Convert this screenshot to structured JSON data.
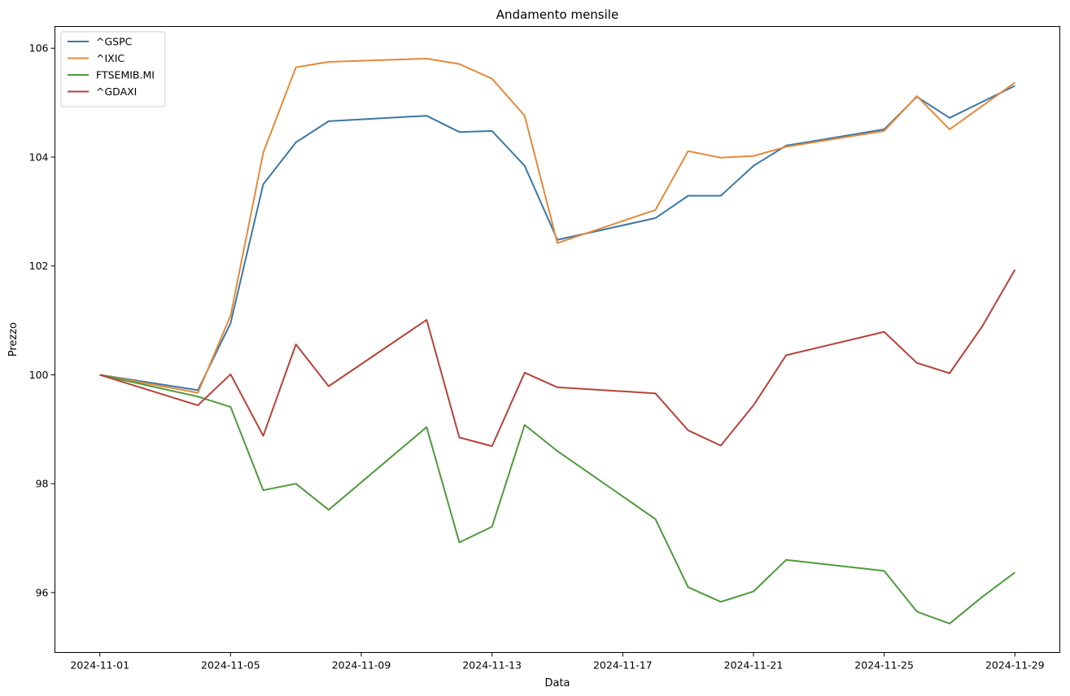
{
  "chart_data": {
    "type": "line",
    "title": "Andamento mensile",
    "xlabel": "Data",
    "ylabel": "Prezzo",
    "x": [
      "2024-11-01",
      "2024-11-04",
      "2024-11-05",
      "2024-11-06",
      "2024-11-07",
      "2024-11-08",
      "2024-11-11",
      "2024-11-12",
      "2024-11-13",
      "2024-11-14",
      "2024-11-15",
      "2024-11-18",
      "2024-11-19",
      "2024-11-20",
      "2024-11-21",
      "2024-11-22",
      "2024-11-25",
      "2024-11-26",
      "2024-11-27",
      "2024-11-28",
      "2024-11-29"
    ],
    "xticks": [
      "2024-11-01",
      "2024-11-05",
      "2024-11-09",
      "2024-11-13",
      "2024-11-17",
      "2024-11-21",
      "2024-11-25",
      "2024-11-29"
    ],
    "yticks": [
      96,
      98,
      100,
      102,
      104,
      106
    ],
    "xlim": [
      "2024-10-30T15:00",
      "2024-11-30T09:00"
    ],
    "ylim": [
      94.9,
      106.4
    ],
    "grid": false,
    "legend_position": "top-left",
    "series": [
      {
        "name": "^GSPC",
        "color": "#3c78a6",
        "values": [
          100.0,
          99.72,
          100.95,
          103.5,
          104.27,
          104.66,
          104.76,
          104.46,
          104.48,
          103.84,
          102.48,
          102.88,
          103.29,
          103.29,
          103.84,
          104.21,
          104.51,
          105.11,
          104.72,
          null,
          105.31
        ]
      },
      {
        "name": "^IXIC",
        "color": "#e5893a",
        "values": [
          100.0,
          99.67,
          101.09,
          104.08,
          105.65,
          105.75,
          105.81,
          105.71,
          105.44,
          104.76,
          102.42,
          103.03,
          104.11,
          103.99,
          104.02,
          104.19,
          104.48,
          105.12,
          104.51,
          null,
          105.37
        ]
      },
      {
        "name": "FTSEMIB.MI",
        "color": "#4e9a3d",
        "values": [
          100.0,
          99.6,
          99.41,
          97.88,
          98.0,
          97.52,
          99.04,
          96.92,
          97.21,
          99.08,
          98.6,
          97.35,
          96.1,
          95.83,
          96.02,
          96.6,
          96.4,
          95.65,
          95.43,
          95.92,
          96.37
        ]
      },
      {
        "name": "^GDAXI",
        "color": "#b5433a",
        "values": [
          100.0,
          99.44,
          100.01,
          98.88,
          100.56,
          99.79,
          101.01,
          98.85,
          98.69,
          100.04,
          99.77,
          99.66,
          98.98,
          98.7,
          99.44,
          100.36,
          100.79,
          100.22,
          100.03,
          100.89,
          101.93
        ]
      }
    ]
  }
}
